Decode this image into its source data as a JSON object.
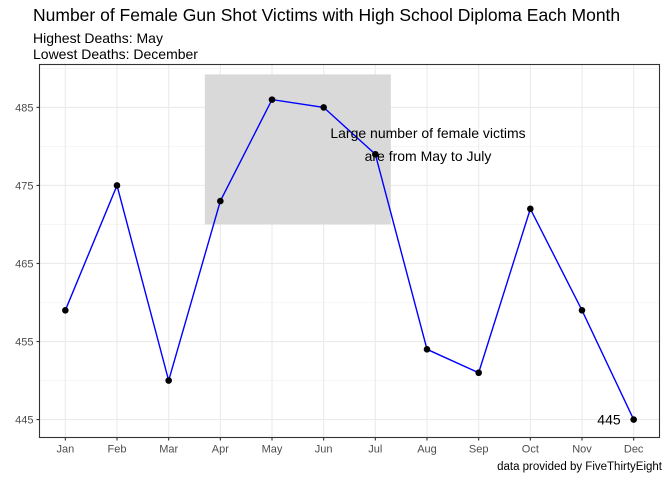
{
  "chart_data": {
    "type": "line",
    "title": "Number of Female Gun Shot Victims with High School Diploma Each Month",
    "subtitles": [
      "Highest Deaths: May",
      "Lowest Deaths: December"
    ],
    "caption": "data provided by FiveThirtyEight",
    "categories": [
      "Jan",
      "Feb",
      "Mar",
      "Apr",
      "May",
      "Jun",
      "Jul",
      "Aug",
      "Sep",
      "Oct",
      "Nov",
      "Dec"
    ],
    "values": [
      459,
      475,
      450,
      473,
      486,
      485,
      479,
      454,
      451,
      472,
      459,
      445
    ],
    "xlabel": "",
    "ylabel": "",
    "ylim": [
      442.7,
      490.5
    ],
    "yticks": [
      445,
      455,
      465,
      475,
      485
    ],
    "grid": true,
    "line_color": "#0000ff",
    "point_color": "#000000",
    "highlight": {
      "x_from": "Apr",
      "x_to": "Jul",
      "y_from": 470,
      "y_to": 490,
      "color": "#d9d9d9"
    },
    "annotation": {
      "lines": [
        "Large number of female victims",
        "are from May to July"
      ]
    },
    "point_label": {
      "category": "Dec",
      "text": "445"
    }
  }
}
